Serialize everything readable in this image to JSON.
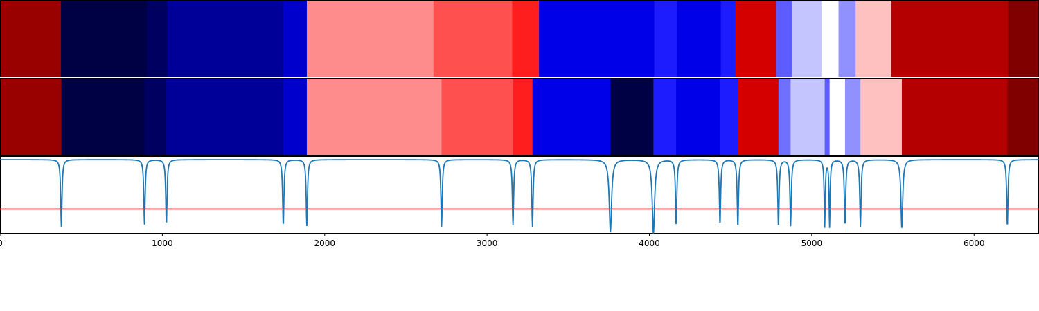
{
  "chart_data": {
    "type": "heatmap",
    "title": "",
    "xlabel": "",
    "ylabel": "",
    "xlim": [
      0,
      6400
    ],
    "x_ticks": [
      0,
      1000,
      2000,
      3000,
      4000,
      5000,
      6000
    ],
    "x_tick_labels": [
      "0",
      "1000",
      "2000",
      "3000",
      "4000",
      "5000",
      "6000"
    ],
    "colormap": "seismic",
    "rows": [
      {
        "segments": [
          {
            "start": 0,
            "end": 375,
            "color": "#990000"
          },
          {
            "start": 375,
            "end": 905,
            "color": "#000045"
          },
          {
            "start": 905,
            "end": 1030,
            "color": "#000060"
          },
          {
            "start": 1030,
            "end": 1745,
            "color": "#000099"
          },
          {
            "start": 1745,
            "end": 1890,
            "color": "#0000cc"
          },
          {
            "start": 1890,
            "end": 2670,
            "color": "#ff8c8c"
          },
          {
            "start": 2670,
            "end": 3155,
            "color": "#ff5050"
          },
          {
            "start": 3155,
            "end": 3320,
            "color": "#ff1e1e"
          },
          {
            "start": 3320,
            "end": 4030,
            "color": "#0000e8"
          },
          {
            "start": 4030,
            "end": 4170,
            "color": "#1c1cff"
          },
          {
            "start": 4170,
            "end": 4440,
            "color": "#0000e8"
          },
          {
            "start": 4440,
            "end": 4530,
            "color": "#1c1cff"
          },
          {
            "start": 4530,
            "end": 4780,
            "color": "#d40000"
          },
          {
            "start": 4780,
            "end": 4880,
            "color": "#5c5cff"
          },
          {
            "start": 4880,
            "end": 5060,
            "color": "#c4c4ff"
          },
          {
            "start": 5060,
            "end": 5165,
            "color": "#ffffff"
          },
          {
            "start": 5165,
            "end": 5270,
            "color": "#9090ff"
          },
          {
            "start": 5270,
            "end": 5490,
            "color": "#ffc0c0"
          },
          {
            "start": 5490,
            "end": 6210,
            "color": "#b40000"
          },
          {
            "start": 6210,
            "end": 6400,
            "color": "#800000"
          }
        ]
      },
      {
        "segments": [
          {
            "start": 0,
            "end": 378,
            "color": "#990000"
          },
          {
            "start": 378,
            "end": 890,
            "color": "#000045"
          },
          {
            "start": 890,
            "end": 1025,
            "color": "#000060"
          },
          {
            "start": 1025,
            "end": 1745,
            "color": "#000099"
          },
          {
            "start": 1745,
            "end": 1890,
            "color": "#0000cc"
          },
          {
            "start": 1890,
            "end": 2720,
            "color": "#ff8c8c"
          },
          {
            "start": 2720,
            "end": 3160,
            "color": "#ff5050"
          },
          {
            "start": 3160,
            "end": 3280,
            "color": "#ff1e1e"
          },
          {
            "start": 3280,
            "end": 3760,
            "color": "#0000e8"
          },
          {
            "start": 3760,
            "end": 4025,
            "color": "#000045"
          },
          {
            "start": 4025,
            "end": 4165,
            "color": "#1c1cff"
          },
          {
            "start": 4165,
            "end": 4435,
            "color": "#0000e8"
          },
          {
            "start": 4435,
            "end": 4545,
            "color": "#1c1cff"
          },
          {
            "start": 4545,
            "end": 4795,
            "color": "#d40000"
          },
          {
            "start": 4795,
            "end": 4870,
            "color": "#7070ff"
          },
          {
            "start": 4870,
            "end": 5080,
            "color": "#c4c4ff"
          },
          {
            "start": 5080,
            "end": 5110,
            "color": "#5c5cff"
          },
          {
            "start": 5110,
            "end": 5205,
            "color": "#ffffff"
          },
          {
            "start": 5205,
            "end": 5300,
            "color": "#9090ff"
          },
          {
            "start": 5300,
            "end": 5555,
            "color": "#ffc0c0"
          },
          {
            "start": 5555,
            "end": 6205,
            "color": "#b40000"
          },
          {
            "start": 6205,
            "end": 6400,
            "color": "#800000"
          }
        ]
      }
    ],
    "series": [
      {
        "type": "line",
        "color": "#1f77b4",
        "baseline": 0,
        "ylim": [
          -1.05,
          0.05
        ],
        "dips": [
          {
            "x": 378,
            "depth": 0.95,
            "width": 5
          },
          {
            "x": 890,
            "depth": 0.92,
            "width": 5
          },
          {
            "x": 1025,
            "depth": 0.92,
            "width": 5
          },
          {
            "x": 1745,
            "depth": 0.94,
            "width": 5
          },
          {
            "x": 1890,
            "depth": 0.94,
            "width": 5
          },
          {
            "x": 2720,
            "depth": 0.95,
            "width": 5
          },
          {
            "x": 3160,
            "depth": 0.93,
            "width": 5
          },
          {
            "x": 3280,
            "depth": 0.95,
            "width": 5
          },
          {
            "x": 3760,
            "depth": 1.03,
            "width": 9
          },
          {
            "x": 4025,
            "depth": 1.05,
            "width": 9
          },
          {
            "x": 4165,
            "depth": 0.94,
            "width": 5
          },
          {
            "x": 4435,
            "depth": 0.92,
            "width": 5
          },
          {
            "x": 4545,
            "depth": 0.95,
            "width": 5
          },
          {
            "x": 4795,
            "depth": 0.95,
            "width": 5
          },
          {
            "x": 4870,
            "depth": 0.94,
            "width": 5
          },
          {
            "x": 5080,
            "depth": 0.95,
            "width": 4
          },
          {
            "x": 5110,
            "depth": 0.95,
            "width": 4
          },
          {
            "x": 5205,
            "depth": 0.93,
            "width": 5
          },
          {
            "x": 5300,
            "depth": 0.95,
            "width": 5
          },
          {
            "x": 5555,
            "depth": 0.98,
            "width": 7
          },
          {
            "x": 6205,
            "depth": 0.95,
            "width": 5
          }
        ]
      },
      {
        "type": "hline",
        "color": "#ff0000",
        "y": -0.7
      }
    ],
    "grid": false,
    "legend": "none"
  }
}
